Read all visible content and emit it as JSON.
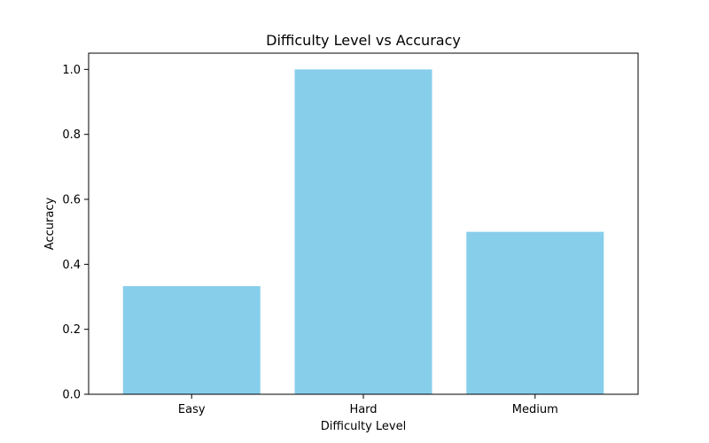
{
  "chart_data": {
    "type": "bar",
    "title": "Difficulty Level vs Accuracy",
    "xlabel": "Difficulty Level",
    "ylabel": "Accuracy",
    "categories": [
      "Easy",
      "Hard",
      "Medium"
    ],
    "values": [
      0.333,
      1.0,
      0.5
    ],
    "ylim": [
      0,
      1.05
    ],
    "yticks": [
      0.0,
      0.2,
      0.4,
      0.6,
      0.8,
      1.0
    ],
    "ytick_labels": [
      "0.0",
      "0.2",
      "0.4",
      "0.6",
      "0.8",
      "1.0"
    ],
    "bar_color": "#87CEEB",
    "grid": false,
    "legend": "none"
  }
}
